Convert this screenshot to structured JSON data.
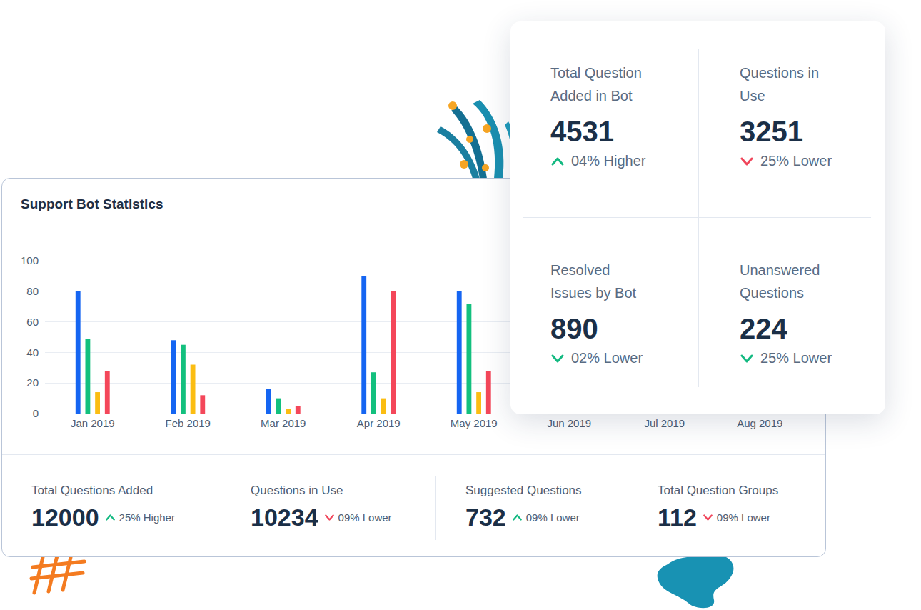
{
  "panel": {
    "title": "Support Bot Statistics"
  },
  "chart_data": {
    "type": "bar",
    "categories": [
      "Jan 2019",
      "Feb 2019",
      "Mar 2019",
      "Apr 2019",
      "May 2019",
      "Jun 2019",
      "Jul 2019",
      "Aug 2019"
    ],
    "series": [
      {
        "color": "#1565f2",
        "values": [
          80,
          48,
          16,
          90,
          80,
          null,
          null,
          null
        ]
      },
      {
        "color": "#13c07e",
        "values": [
          49,
          45,
          10,
          27,
          72,
          null,
          null,
          null
        ]
      },
      {
        "color": "#fbbd12",
        "values": [
          14,
          32,
          3,
          10,
          14,
          null,
          null,
          null
        ]
      },
      {
        "color": "#f4475a",
        "values": [
          28,
          12,
          5,
          80,
          28,
          null,
          null,
          null
        ]
      }
    ],
    "ylim": [
      0,
      100
    ],
    "yticks": [
      0,
      20,
      40,
      60,
      80,
      100
    ],
    "grid": true
  },
  "summary": [
    {
      "label": "Total Questions Added",
      "value": 12000,
      "change": "25% Higher",
      "arrow": "up",
      "color": "#13b981"
    },
    {
      "label": "Questions in Use",
      "value": 10234,
      "change": "09% Lower",
      "arrow": "down",
      "color": "#f0455a"
    },
    {
      "label": "Suggested Questions",
      "value": 732,
      "change": "09% Lower",
      "arrow": "up",
      "color": "#13b981"
    },
    {
      "label": "Total Question Groups",
      "value": 112,
      "change": "09% Lower",
      "arrow": "down",
      "color": "#f0455a"
    }
  ],
  "cards": [
    {
      "label": "Total Question Added in Bot",
      "value": 4531,
      "change": "04% Higher",
      "arrow": "up",
      "color": "#13b981"
    },
    {
      "label": "Questions in Use",
      "value": 3251,
      "change": "25% Lower",
      "arrow": "down",
      "color": "#f0455a"
    },
    {
      "label": "Resolved Issues by Bot",
      "value": 890,
      "change": "02% Lower",
      "arrow": "down",
      "color": "#13b981"
    },
    {
      "label": "Unanswered Questions",
      "value": 224,
      "change": "25% Lower",
      "arrow": "down",
      "color": "#13b981"
    }
  ]
}
